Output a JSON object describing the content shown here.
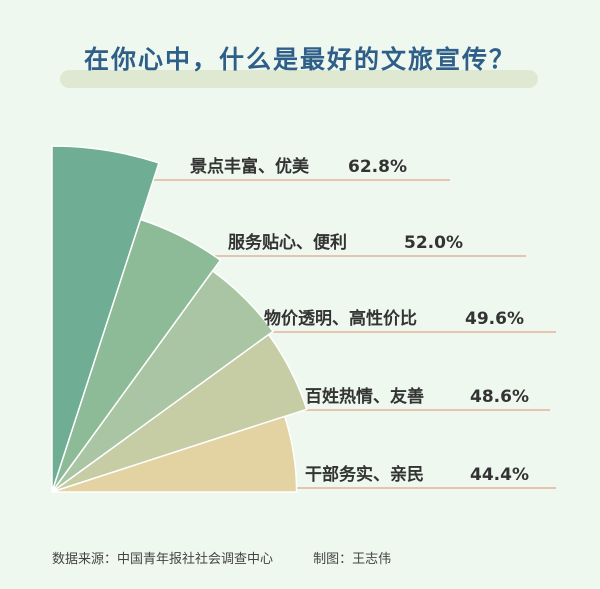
{
  "title": "在你心中，什么是最好的文旅宣传？",
  "chart_data": {
    "type": "pie",
    "categories": [
      "景点丰富、优美",
      "服务贴心、便利",
      "物价透明、高性价比",
      "百姓热情、友善",
      "干部务实、亲民"
    ],
    "values": [
      62.8,
      52.0,
      49.6,
      48.6,
      44.4
    ],
    "value_labels": [
      "62.8%",
      "52.0%",
      "49.6%",
      "48.6%",
      "44.4%"
    ],
    "colors": [
      "#6fae95",
      "#8dbb98",
      "#a9c5a3",
      "#c6cda4",
      "#e3d3a3"
    ]
  },
  "footer": {
    "source": "数据来源：中国青年报社社会调查中心",
    "author": "制图：王志伟"
  }
}
